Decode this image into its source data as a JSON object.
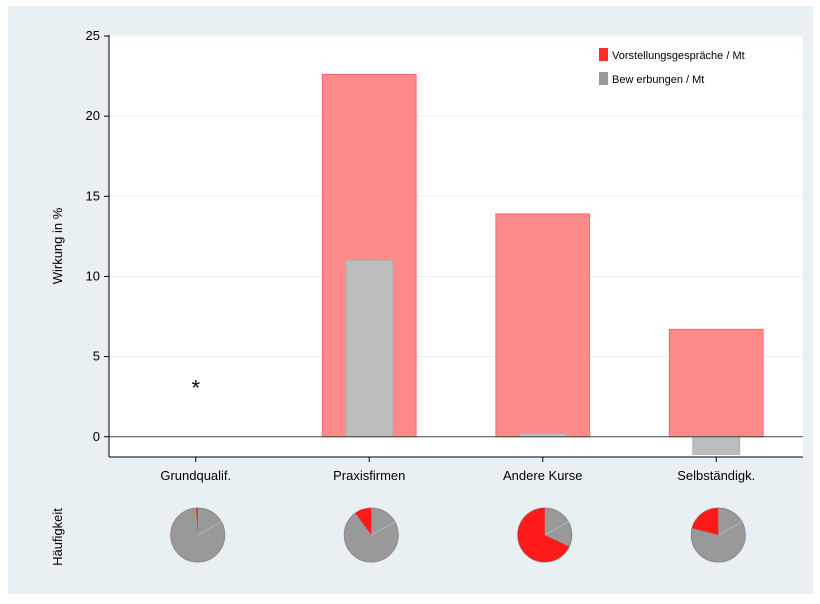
{
  "chart_data": {
    "type": "bar",
    "categories": [
      "Grundqualif.",
      "Praxisfirmen",
      "Andere Kurse",
      "Selbständigk."
    ],
    "series": [
      {
        "name": "Vorstellungsgespräche / Mt",
        "color": "#ff8a8a",
        "legend_color": "#ff2a2a",
        "values": [
          null,
          22.6,
          13.9,
          6.7
        ]
      },
      {
        "name": "Bew erbungen / Mt",
        "color": "#bdbdbd",
        "legend_color": "#999999",
        "values": [
          null,
          11.0,
          0.2,
          -1.1
        ]
      }
    ],
    "ylabel": "Wirkung in %",
    "ylim": [
      -1.2,
      25
    ],
    "yticks": [
      0,
      5,
      10,
      15,
      20,
      25
    ],
    "grid": true,
    "legend_position": "top-right",
    "annotation": {
      "category": "Grundqualif.",
      "text": "*",
      "y": 3.2
    },
    "frequency_label": "Häufigkeit",
    "frequency_pies": [
      {
        "category": "Grundqualif.",
        "share": 0.01
      },
      {
        "category": "Praxisfirmen",
        "share": 0.1
      },
      {
        "category": "Andere Kurse",
        "share": 0.68
      },
      {
        "category": "Selbständigk.",
        "share": 0.21
      }
    ]
  }
}
